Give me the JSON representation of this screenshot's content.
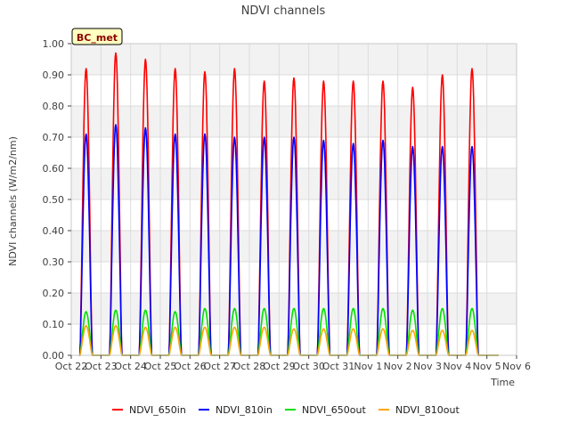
{
  "chart_data": {
    "type": "line",
    "title": "NDVI channels",
    "xlabel": "Time",
    "ylabel": "NDVI channels (W/m2/nm)",
    "ylim": [
      0.0,
      1.0
    ],
    "xlim_days": [
      0,
      15
    ],
    "grid": true,
    "legend_position": "bottom",
    "station_label": "BC_met",
    "x_tick_labels": [
      "Oct 22",
      "Oct 23",
      "Oct 24",
      "Oct 25",
      "Oct 26",
      "Oct 27",
      "Oct 28",
      "Oct 29",
      "Oct 30",
      "Oct 31",
      "Nov 1",
      "Nov 2",
      "Nov 3",
      "Nov 4",
      "Nov 5",
      "Nov 6"
    ],
    "y_ticks": [
      0.0,
      0.1,
      0.2,
      0.3,
      0.4,
      0.5,
      0.6,
      0.7,
      0.8,
      0.9,
      1.0
    ],
    "y_tick_labels": [
      "0.00",
      "0.10",
      "0.20",
      "0.30",
      "0.40",
      "0.50",
      "0.60",
      "0.70",
      "0.80",
      "0.90",
      "1.00"
    ],
    "day_centers": [
      0.5,
      1.5,
      2.5,
      3.5,
      4.5,
      5.5,
      6.5,
      7.5,
      8.5,
      9.5,
      10.5,
      11.5,
      12.5,
      13.5
    ],
    "peak_half_width_days": 0.21,
    "series": [
      {
        "name": "NDVI_650in",
        "color": "#ff0000",
        "daily_peaks": [
          0.92,
          0.97,
          0.95,
          0.92,
          0.91,
          0.92,
          0.88,
          0.89,
          0.88,
          0.88,
          0.88,
          0.86,
          0.9,
          0.92
        ]
      },
      {
        "name": "NDVI_810in",
        "color": "#0000ff",
        "daily_peaks": [
          0.71,
          0.74,
          0.73,
          0.71,
          0.71,
          0.7,
          0.7,
          0.7,
          0.69,
          0.68,
          0.69,
          0.67,
          0.67,
          0.67
        ]
      },
      {
        "name": "NDVI_650out",
        "color": "#00e000",
        "daily_peaks": [
          0.14,
          0.145,
          0.145,
          0.14,
          0.15,
          0.15,
          0.15,
          0.15,
          0.15,
          0.15,
          0.15,
          0.145,
          0.15,
          0.15
        ]
      },
      {
        "name": "NDVI_810out",
        "color": "#ffa500",
        "daily_peaks": [
          0.095,
          0.095,
          0.09,
          0.09,
          0.09,
          0.09,
          0.09,
          0.085,
          0.085,
          0.085,
          0.085,
          0.08,
          0.08,
          0.08
        ]
      }
    ]
  }
}
